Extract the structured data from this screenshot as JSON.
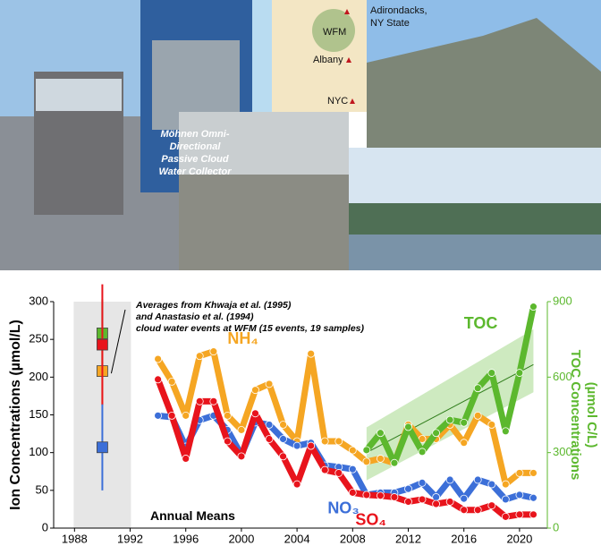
{
  "photo_labels": {
    "collector": [
      "Möhnen Omni-",
      "Directional",
      "Passive Cloud",
      "Water Collector"
    ],
    "map_site": "WFM",
    "map_region": [
      "Adirondacks,",
      "NY State"
    ],
    "map_city1": "Albany",
    "map_city2": "NYC"
  },
  "chart_data": {
    "type": "line",
    "ylabel": "Ion Concentrations (µmol/L)",
    "y2label": [
      "TOC Concentrations",
      "(µmol C/L)"
    ],
    "annotations": [
      "Averages from Khwaja et al. (1995)",
      "and Anastasio et al. (1994)",
      "cloud water events at WFM (15 events, 19 samples)"
    ],
    "panel_label": "Annual Means",
    "xlim": [
      1986.5,
      2022
    ],
    "xticks": [
      1988,
      1992,
      1996,
      2000,
      2004,
      2008,
      2012,
      2016,
      2020
    ],
    "ylim": [
      0,
      300
    ],
    "yticks": [
      0,
      50,
      100,
      150,
      200,
      250,
      300
    ],
    "y2lim": [
      0,
      900
    ],
    "y2ticks": [
      0,
      300,
      600,
      900
    ],
    "x": [
      1994,
      1995,
      1996,
      1997,
      1998,
      1999,
      2000,
      2001,
      2002,
      2003,
      2004,
      2005,
      2006,
      2007,
      2008,
      2009,
      2010,
      2011,
      2012,
      2013,
      2014,
      2015,
      2016,
      2017,
      2018,
      2019,
      2020,
      2021
    ],
    "series": [
      {
        "name": "NH₄",
        "color": "#f5a623",
        "values": [
          224,
          194,
          149,
          228,
          234,
          149,
          130,
          183,
          191,
          137,
          115,
          231,
          115,
          115,
          103,
          88,
          92,
          86,
          137,
          118,
          118,
          137,
          113,
          149,
          137,
          58,
          73,
          73
        ]
      },
      {
        "name": "NO₃",
        "color": "#3c6fd8",
        "values": [
          149,
          147,
          108,
          143,
          149,
          130,
          97,
          140,
          137,
          118,
          109,
          113,
          83,
          81,
          78,
          44,
          47,
          47,
          52,
          60,
          41,
          64,
          39,
          64,
          58,
          38,
          44,
          40
        ]
      },
      {
        "name": "SO₄",
        "color": "#e8141c",
        "values": [
          197,
          149,
          92,
          168,
          168,
          115,
          95,
          152,
          118,
          95,
          58,
          109,
          77,
          73,
          47,
          44,
          43,
          41,
          35,
          38,
          32,
          35,
          24,
          24,
          30,
          15,
          18,
          18
        ]
      },
      {
        "name": "TOC",
        "color": "#5cb82e",
        "axis": "y2",
        "values": [
          null,
          null,
          null,
          null,
          null,
          null,
          null,
          null,
          null,
          null,
          null,
          null,
          null,
          null,
          null,
          310,
          378,
          259,
          402,
          303,
          378,
          430,
          419,
          556,
          617,
          385,
          617,
          880
        ]
      }
    ],
    "toc_trend": {
      "x": [
        2009,
        2021
      ],
      "values": [
        300,
        650
      ],
      "lower": [
        190,
        540
      ],
      "upper": [
        400,
        790
      ]
    },
    "historical_x": 1990,
    "historical": [
      {
        "color": "#5cb82e",
        "value": 258,
        "error": 45
      },
      {
        "color": "#f5a623",
        "value": 208,
        "error": 45
      },
      {
        "color": "#e8141c",
        "value": 243,
        "error": 80
      },
      {
        "color": "#3c6fd8",
        "value": 107,
        "error": 57
      }
    ]
  }
}
